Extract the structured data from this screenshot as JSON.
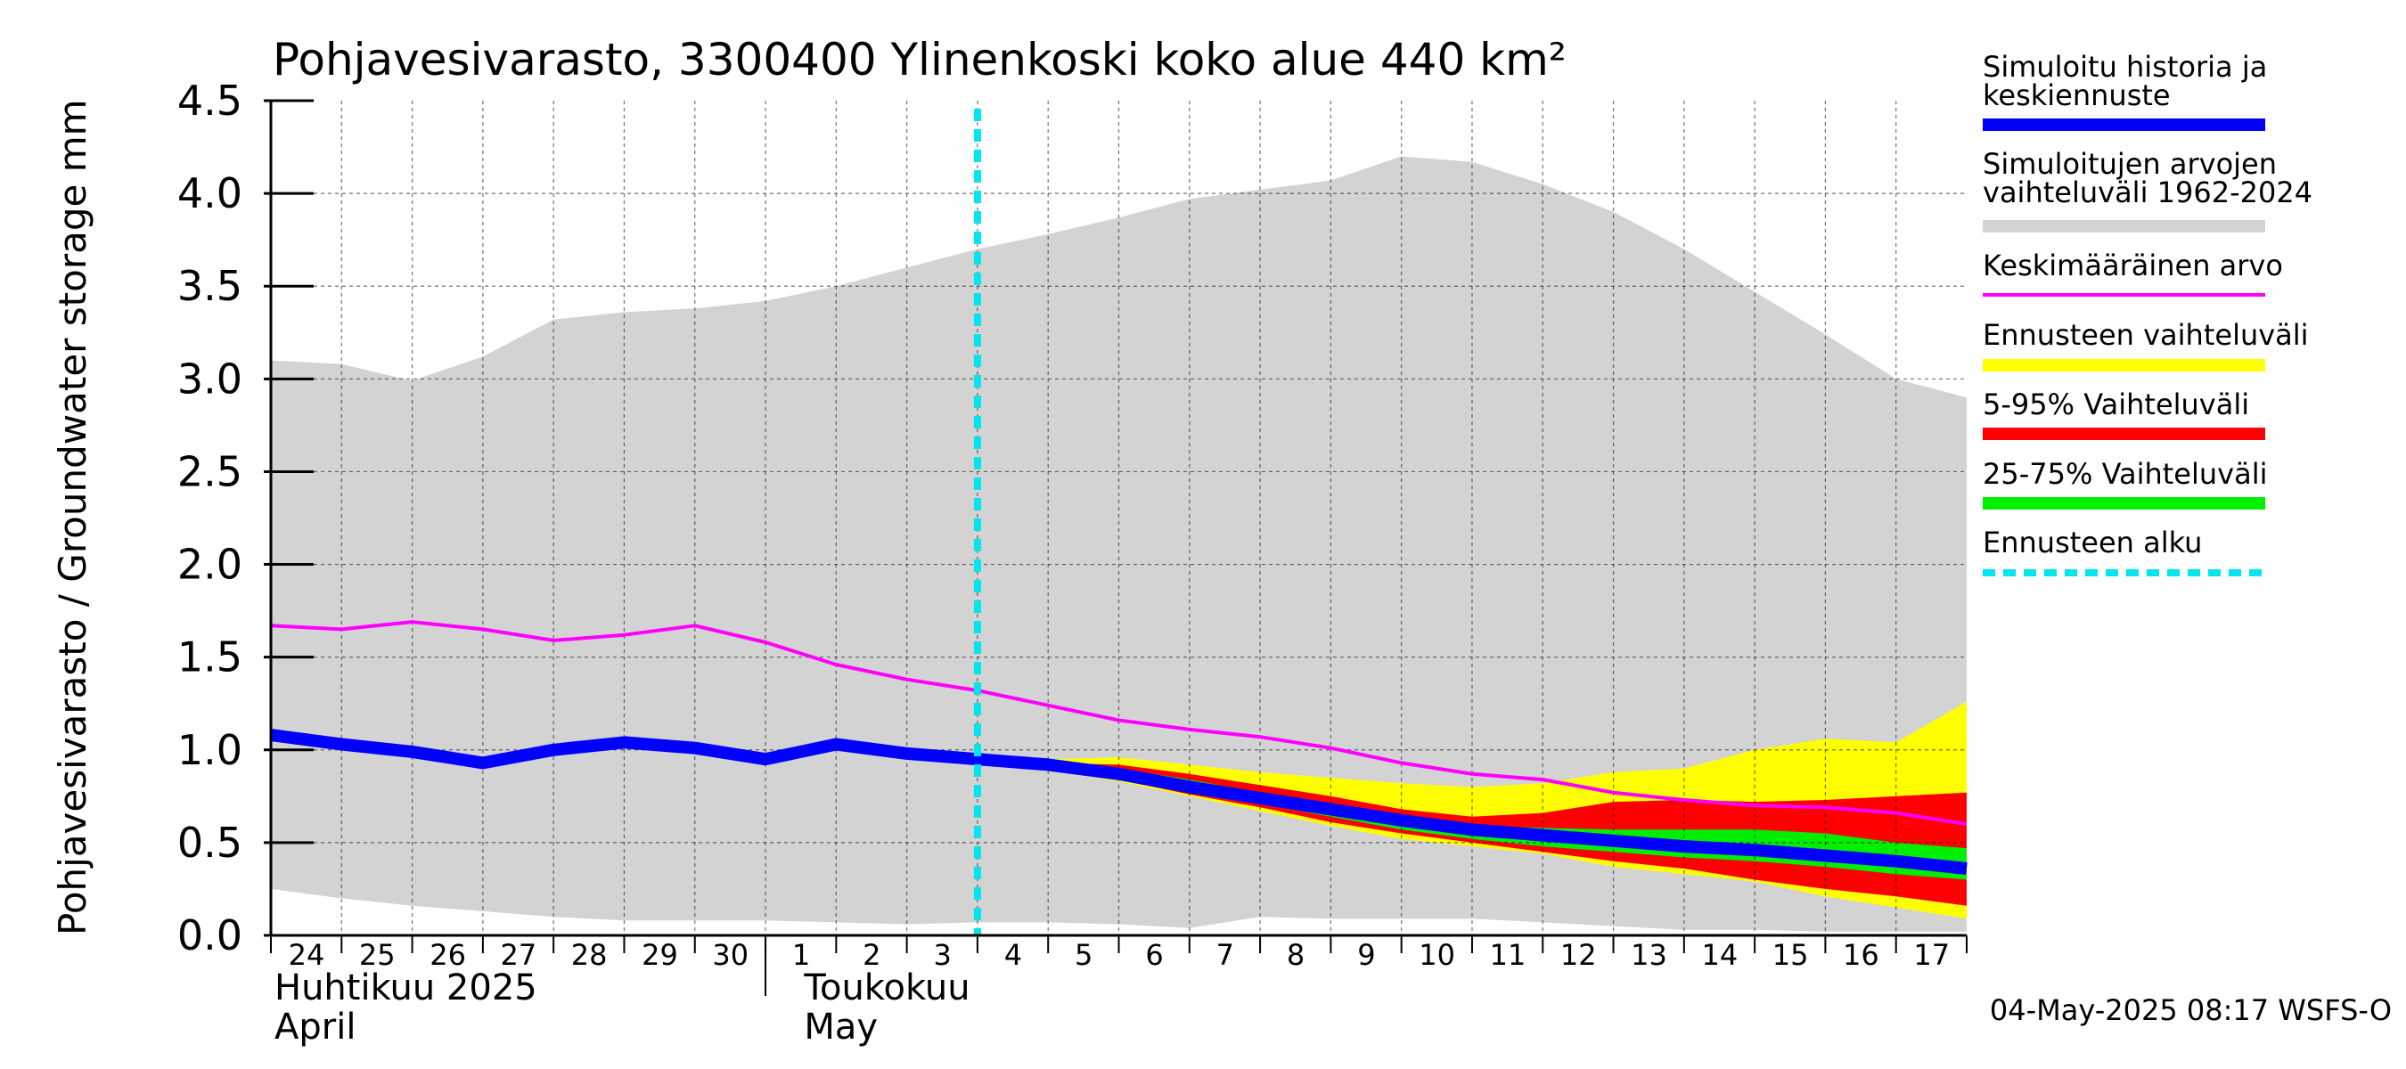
{
  "chart_data": {
    "type": "area",
    "title": "Pohjavesivarasto, 3300400 Ylinenkoski koko alue 440 km²",
    "ylabel": "Pohjavesivarasto / Groundwater storage   mm",
    "ylim": [
      0,
      4.5
    ],
    "yticks": [
      "0.0",
      "0.5",
      "1.0",
      "1.5",
      "2.0",
      "2.5",
      "3.0",
      "3.5",
      "4.0",
      "4.5"
    ],
    "xlim": [
      0,
      24
    ],
    "x_day_labels": [
      "24",
      "25",
      "26",
      "27",
      "28",
      "29",
      "30",
      "1",
      "2",
      "3",
      "4",
      "5",
      "6",
      "7",
      "8",
      "9",
      "10",
      "11",
      "12",
      "13",
      "14",
      "15",
      "16",
      "17"
    ],
    "month_labels": [
      {
        "fi": "Huhtikuu  2025",
        "en": "April"
      },
      {
        "fi": "Toukokuu",
        "en": "May"
      }
    ],
    "forecast_start_x": 10,
    "grid": true,
    "legend_position": "right",
    "timestamp": "04-May-2025 08:17 WSFS-O",
    "series": {
      "hist_range": {
        "name": "Simuloitujen arvojen vaihteluväli 1962-2024",
        "x": [
          0,
          1,
          2,
          3,
          4,
          5,
          6,
          7,
          8,
          9,
          10,
          11,
          12,
          13,
          14,
          15,
          16,
          17,
          18,
          19,
          20,
          21,
          22,
          23,
          24
        ],
        "upper": [
          3.1,
          3.08,
          2.99,
          3.12,
          3.32,
          3.36,
          3.38,
          3.42,
          3.5,
          3.6,
          3.7,
          3.78,
          3.87,
          3.97,
          4.02,
          4.07,
          4.2,
          4.17,
          4.05,
          3.9,
          3.7,
          3.47,
          3.24,
          3.0,
          2.9
        ],
        "lower": [
          0.25,
          0.2,
          0.16,
          0.13,
          0.1,
          0.08,
          0.08,
          0.08,
          0.07,
          0.06,
          0.07,
          0.07,
          0.06,
          0.04,
          0.1,
          0.09,
          0.09,
          0.09,
          0.07,
          0.05,
          0.03,
          0.03,
          0.02,
          0.02,
          0.02
        ]
      },
      "mean": {
        "name": "Keskimääräinen arvo",
        "x": [
          0,
          1,
          2,
          3,
          4,
          5,
          6,
          7,
          8,
          9,
          10,
          11,
          12,
          13,
          14,
          15,
          16,
          17,
          18,
          19,
          20,
          21,
          22,
          23,
          24
        ],
        "values": [
          1.67,
          1.65,
          1.69,
          1.65,
          1.59,
          1.62,
          1.67,
          1.58,
          1.46,
          1.38,
          1.32,
          1.24,
          1.16,
          1.11,
          1.07,
          1.01,
          0.93,
          0.87,
          0.84,
          0.77,
          0.73,
          0.7,
          0.69,
          0.66,
          0.6
        ]
      },
      "forecast_range": {
        "name": "Ennusteen vaihteluväli",
        "x": [
          10,
          11,
          12,
          13,
          14,
          15,
          16,
          17,
          18,
          19,
          20,
          21,
          22,
          23,
          24
        ],
        "upper": [
          0.96,
          0.95,
          0.96,
          0.92,
          0.88,
          0.85,
          0.82,
          0.8,
          0.82,
          0.88,
          0.9,
          1.0,
          1.06,
          1.04,
          1.26
        ],
        "lower": [
          0.94,
          0.89,
          0.83,
          0.75,
          0.67,
          0.59,
          0.52,
          0.48,
          0.44,
          0.37,
          0.33,
          0.29,
          0.21,
          0.15,
          0.09
        ]
      },
      "range_5_95": {
        "name": "5-95% Vaihteluväli",
        "x": [
          10,
          11,
          12,
          13,
          14,
          15,
          16,
          17,
          18,
          19,
          20,
          21,
          22,
          23,
          24
        ],
        "upper": [
          0.95,
          0.93,
          0.92,
          0.87,
          0.81,
          0.75,
          0.68,
          0.64,
          0.66,
          0.72,
          0.73,
          0.72,
          0.73,
          0.75,
          0.77
        ],
        "lower": [
          0.94,
          0.9,
          0.84,
          0.76,
          0.69,
          0.61,
          0.55,
          0.5,
          0.45,
          0.4,
          0.36,
          0.3,
          0.25,
          0.21,
          0.16
        ]
      },
      "range_25_75": {
        "name": "25-75% Vaihteluväli",
        "x": [
          10,
          11,
          12,
          13,
          14,
          15,
          16,
          17,
          18,
          19,
          20,
          21,
          22,
          23,
          24
        ],
        "upper": [
          0.95,
          0.92,
          0.9,
          0.84,
          0.77,
          0.7,
          0.64,
          0.59,
          0.58,
          0.57,
          0.57,
          0.57,
          0.55,
          0.5,
          0.47
        ],
        "lower": [
          0.94,
          0.91,
          0.85,
          0.78,
          0.71,
          0.64,
          0.57,
          0.52,
          0.48,
          0.45,
          0.42,
          0.4,
          0.37,
          0.33,
          0.3
        ]
      },
      "simulated": {
        "name": "Simuloitu historia ja keskiennuste",
        "x": [
          0,
          1,
          2,
          3,
          4,
          5,
          6,
          7,
          8,
          9,
          10,
          11,
          12,
          13,
          14,
          15,
          16,
          17,
          18,
          19,
          20,
          21,
          22,
          23,
          24
        ],
        "values": [
          1.08,
          1.03,
          0.99,
          0.93,
          1.0,
          1.04,
          1.01,
          0.95,
          1.03,
          0.98,
          0.95,
          0.92,
          0.87,
          0.8,
          0.74,
          0.68,
          0.62,
          0.57,
          0.54,
          0.51,
          0.48,
          0.46,
          0.43,
          0.4,
          0.36
        ]
      }
    },
    "colors": {
      "hist_range": "#d3d3d3",
      "mean": "#ff00ff",
      "forecast_range": "#ffff00",
      "range_5_95": "#ff0000",
      "range_25_75": "#00ee00",
      "simulated": "#0000ff",
      "forecast_start": "#00e5ee",
      "grid": "#000000"
    },
    "legend": [
      {
        "key": "simulated",
        "lines": [
          "Simuloitu historia ja",
          "keskiennuste"
        ],
        "style": "thick"
      },
      {
        "key": "hist_range",
        "lines": [
          "Simuloitujen arvojen",
          "vaihteluväli 1962-2024"
        ],
        "style": "band"
      },
      {
        "key": "mean",
        "lines": [
          "Keskimääräinen arvo"
        ],
        "style": "thin"
      },
      {
        "key": "forecast_range",
        "lines": [
          "Ennusteen vaihteluväli"
        ],
        "style": "band"
      },
      {
        "key": "range_5_95",
        "lines": [
          "5-95% Vaihteluväli"
        ],
        "style": "band"
      },
      {
        "key": "range_25_75",
        "lines": [
          "25-75% Vaihteluväli"
        ],
        "style": "band"
      },
      {
        "key": "forecast_start",
        "lines": [
          "Ennusteen alku"
        ],
        "style": "dashed"
      }
    ]
  }
}
